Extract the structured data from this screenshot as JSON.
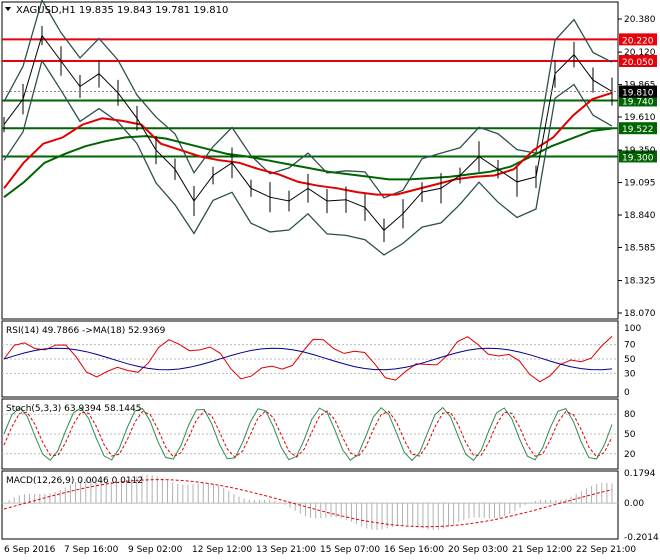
{
  "main": {
    "header": "XAGUSD,H1  19.835 19.843 19.781 19.810",
    "y_ticks": [
      "20.380",
      "20.120",
      "19.865",
      "19.610",
      "19.350",
      "19.095",
      "18.840",
      "18.585",
      "18.325",
      "18.070"
    ],
    "levels": [
      {
        "value": 20.22,
        "label": "20.220",
        "color": "#e8000b"
      },
      {
        "value": 20.05,
        "label": "20.050",
        "color": "#e8000b"
      },
      {
        "value": 19.74,
        "label": "19.740",
        "color": "#006400"
      },
      {
        "value": 19.522,
        "label": "19.522",
        "color": "#006400"
      },
      {
        "value": 19.3,
        "label": "19.300",
        "color": "#006400"
      }
    ],
    "current_price": {
      "value": 19.81,
      "label": "19.810"
    }
  },
  "rsi": {
    "header": "RSI(14) 49.7866  ->MA(18) 52.9369",
    "y_ticks": [
      "70",
      "50",
      "30"
    ],
    "max_label": "100",
    "min_label": "0"
  },
  "stoch": {
    "header": "Stoch(5,3,3) 63.9394 58.1445",
    "y_ticks": [
      "80",
      "50",
      "20"
    ]
  },
  "macd": {
    "header": "MACD(12,26,9) 0.0046 0.0112",
    "y_ticks": [
      "0.1794",
      "0.00",
      "-0.2014"
    ]
  },
  "x_labels": [
    "6 Sep 2016",
    "7 Sep 16:00",
    "9 Sep 02:00",
    "12 Sep 12:00",
    "13 Sep 21:00",
    "15 Sep 07:00",
    "16 Sep 16:00",
    "20 Sep 03:00",
    "21 Sep 12:00",
    "22 Sep 21:00"
  ],
  "chart_data": {
    "type": "line",
    "symbol": "XAGUSD",
    "timeframe": "H1",
    "ohlc_last": {
      "open": 19.835,
      "high": 19.843,
      "low": 19.781,
      "close": 19.81
    },
    "ylim": [
      18.07,
      20.38
    ],
    "price_points": [
      19.55,
      19.75,
      20.25,
      20.05,
      19.85,
      19.95,
      19.8,
      19.6,
      19.35,
      19.2,
      18.95,
      19.15,
      19.25,
      19.05,
      18.98,
      18.95,
      19.05,
      18.95,
      18.96,
      18.9,
      18.72,
      18.85,
      19.02,
      19.05,
      19.15,
      19.3,
      19.2,
      19.1,
      19.14,
      19.95,
      20.1,
      19.9,
      19.81
    ],
    "ma_red_points": [
      19.05,
      19.25,
      19.4,
      19.45,
      19.55,
      19.6,
      19.58,
      19.55,
      19.4,
      19.35,
      19.3,
      19.27,
      19.25,
      19.2,
      19.16,
      19.1,
      19.07,
      19.05,
      19.02,
      19.0,
      19.0,
      19.04,
      19.08,
      19.12,
      19.14,
      19.15,
      19.2,
      19.35,
      19.45,
      19.62,
      19.75,
      19.8
    ],
    "ma_green_points": [
      18.98,
      19.1,
      19.25,
      19.32,
      19.38,
      19.42,
      19.45,
      19.46,
      19.44,
      19.4,
      19.36,
      19.32,
      19.3,
      19.27,
      19.24,
      19.21,
      19.18,
      19.16,
      19.14,
      19.12,
      19.12,
      19.13,
      19.14,
      19.16,
      19.18,
      19.22,
      19.3,
      19.38,
      19.44,
      19.5,
      19.52
    ],
    "levels": [
      20.22,
      20.05,
      19.74,
      19.522,
      19.3
    ],
    "indicators": {
      "rsi": {
        "period": 14,
        "value": 49.7866,
        "ma_period": 18,
        "ma_value": 52.9369,
        "ylim": [
          0,
          100
        ]
      },
      "stoch": {
        "params": "5,3,3",
        "k": 63.9394,
        "d": 58.1445,
        "ylim": [
          0,
          100
        ]
      },
      "macd": {
        "params": "12,26,9",
        "macd": 0.0046,
        "signal": 0.0112,
        "ylim": [
          -0.2014,
          0.1794
        ]
      }
    }
  }
}
